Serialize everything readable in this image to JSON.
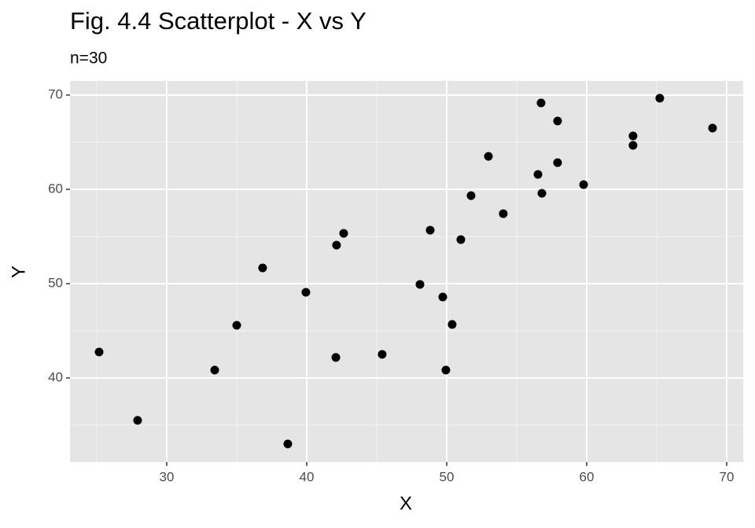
{
  "chart_data": {
    "type": "scatter",
    "title": "Fig. 4.4 Scatterplot - X vs Y",
    "subtitle": "n=30",
    "x_label": "X",
    "y_label": "Y",
    "series": [
      {
        "color": "#000000",
        "x": [
          25.17,
          27.92,
          33.43,
          35.0,
          36.85,
          38.65,
          39.94,
          42.13,
          42.64,
          42.08,
          45.39,
          48.09,
          48.82,
          49.72,
          49.94,
          50.39,
          51.01,
          51.74,
          52.98,
          54.04,
          56.52,
          56.74,
          56.8,
          57.92,
          57.92,
          59.78,
          63.31,
          63.31,
          65.22,
          68.99
        ],
        "values": [
          42.75,
          35.5,
          40.83,
          45.58,
          51.67,
          33.0,
          49.08,
          54.08,
          55.33,
          42.17,
          42.5,
          49.92,
          55.67,
          48.58,
          40.83,
          45.67,
          54.67,
          59.33,
          63.5,
          57.42,
          61.58,
          69.17,
          59.58,
          67.25,
          62.83,
          60.5,
          65.67,
          64.67,
          69.67,
          66.5
        ]
      }
    ],
    "xlim": [
      23.09,
      71.18
    ],
    "ylim": [
      31.08,
      71.5
    ],
    "xticks": [
      30,
      40,
      50,
      60,
      70
    ],
    "yticks": [
      40,
      50,
      60,
      70
    ],
    "x_minor_breaks": [
      25,
      35,
      45,
      55,
      65
    ],
    "y_minor_breaks": [
      35,
      45,
      55,
      65
    ],
    "grid": true
  }
}
